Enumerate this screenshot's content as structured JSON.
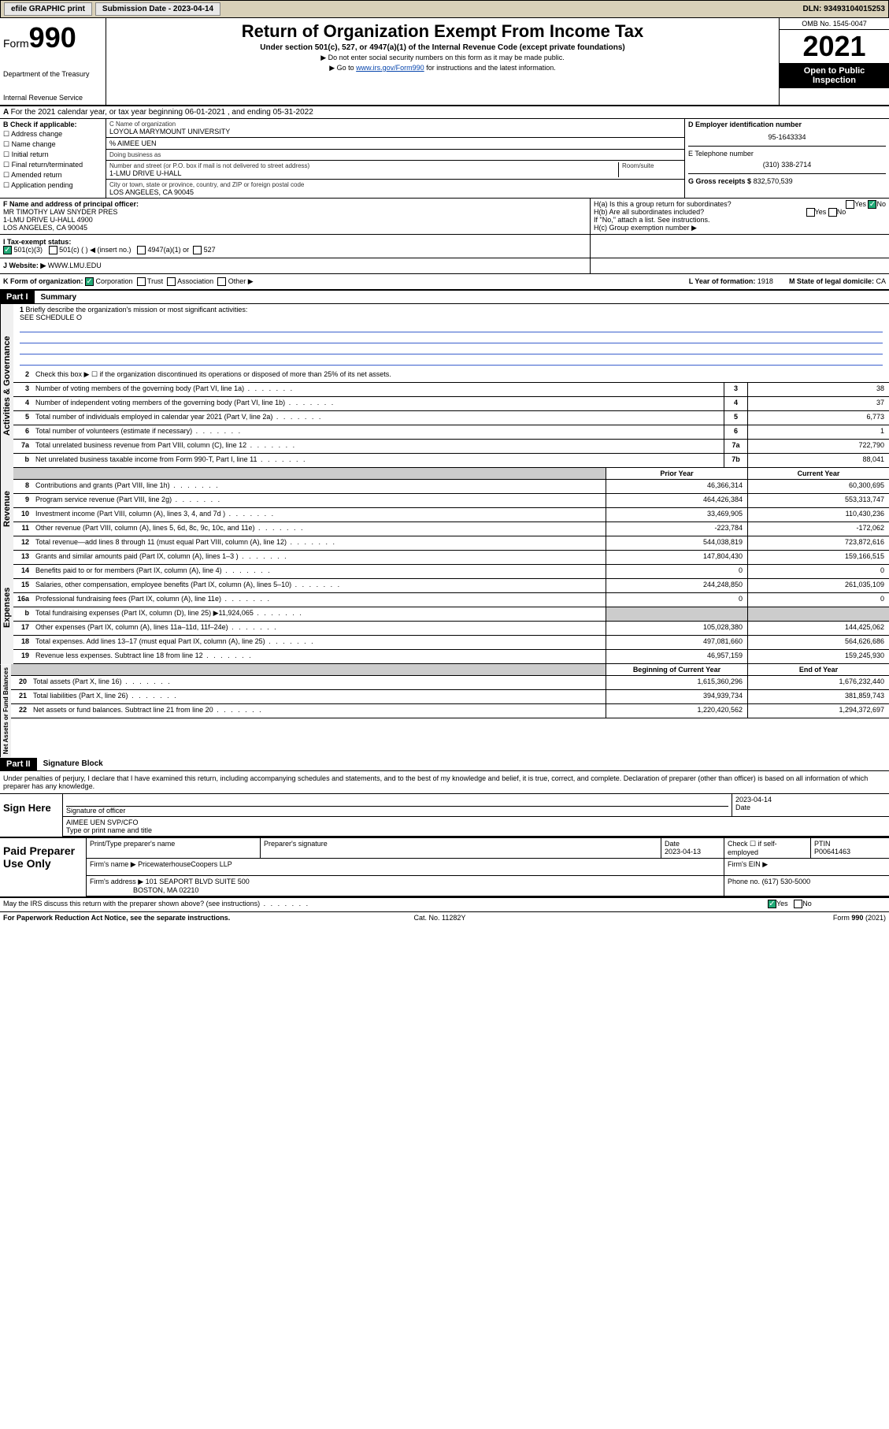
{
  "topbar": {
    "efile": "efile GRAPHIC print",
    "subdate_lbl": "Submission Date - 2023-04-14",
    "dln": "DLN: 93493104015253"
  },
  "header": {
    "form_lbl": "Form",
    "form_num": "990",
    "dept": "Department of the Treasury",
    "irs": "Internal Revenue Service",
    "title": "Return of Organization Exempt From Income Tax",
    "subtitle": "Under section 501(c), 527, or 4947(a)(1) of the Internal Revenue Code (except private foundations)",
    "note1": "▶ Do not enter social security numbers on this form as it may be made public.",
    "note2_pre": "▶ Go to ",
    "note2_link": "www.irs.gov/Form990",
    "note2_post": " for instructions and the latest information.",
    "omb": "OMB No. 1545-0047",
    "year": "2021",
    "inspection": "Open to Public Inspection"
  },
  "line_a": "For the 2021 calendar year, or tax year beginning 06-01-2021   , and ending 05-31-2022",
  "sec_b": {
    "hdr": "B Check if applicable:",
    "opts": [
      "Address change",
      "Name change",
      "Initial return",
      "Final return/terminated",
      "Amended return",
      "Application pending"
    ]
  },
  "sec_c": {
    "name_lbl": "C Name of organization",
    "name": "LOYOLA MARYMOUNT UNIVERSITY",
    "care_lbl": "% AIMEE UEN",
    "dba_lbl": "Doing business as",
    "addr_lbl": "Number and street (or P.O. box if mail is not delivered to street address)",
    "room_lbl": "Room/suite",
    "addr": "1-LMU DRIVE U-HALL",
    "city_lbl": "City or town, state or province, country, and ZIP or foreign postal code",
    "city": "LOS ANGELES, CA  90045"
  },
  "sec_d": {
    "ein_lbl": "D Employer identification number",
    "ein": "95-1643334",
    "tel_lbl": "E Telephone number",
    "tel": "(310) 338-2714",
    "gross_lbl": "G Gross receipts $",
    "gross": "832,570,539"
  },
  "sec_f": {
    "lbl": "F  Name and address of principal officer:",
    "name": "MR TIMOTHY LAW SNYDER PRES",
    "addr1": "1-LMU DRIVE U-HALL 4900",
    "addr2": "LOS ANGELES, CA  90045"
  },
  "sec_h": {
    "ha": "H(a)  Is this a group return for subordinates?",
    "hb": "H(b)  Are all subordinates included?",
    "hb_note": "If \"No,\" attach a list. See instructions.",
    "hc": "H(c)  Group exemption number ▶",
    "yes": "Yes",
    "no": "No"
  },
  "sec_i": {
    "lbl": "I   Tax-exempt status:",
    "o1": "501(c)(3)",
    "o2": "501(c) (   ) ◀ (insert no.)",
    "o3": "4947(a)(1) or",
    "o4": "527"
  },
  "sec_j": {
    "lbl": "J   Website: ▶",
    "val": " WWW.LMU.EDU"
  },
  "sec_k": {
    "lbl": "K Form of organization:",
    "corp": "Corporation",
    "trust": "Trust",
    "assoc": "Association",
    "other": "Other ▶",
    "l_lbl": "L Year of formation:",
    "l_val": "1918",
    "m_lbl": "M State of legal domicile:",
    "m_val": "CA"
  },
  "part1": {
    "hdr": "Part I",
    "title": "Summary",
    "q1": "Briefly describe the organization's mission or most significant activities:",
    "q1v": "SEE SCHEDULE O",
    "q2": "Check this box ▶ ☐  if the organization discontinued its operations or disposed of more than 25% of its net assets.",
    "rows": [
      {
        "n": "3",
        "t": "Number of voting members of the governing body (Part VI, line 1a)",
        "b": "3",
        "v": "38"
      },
      {
        "n": "4",
        "t": "Number of independent voting members of the governing body (Part VI, line 1b)",
        "b": "4",
        "v": "37"
      },
      {
        "n": "5",
        "t": "Total number of individuals employed in calendar year 2021 (Part V, line 2a)",
        "b": "5",
        "v": "6,773"
      },
      {
        "n": "6",
        "t": "Total number of volunteers (estimate if necessary)",
        "b": "6",
        "v": "1"
      },
      {
        "n": "7a",
        "t": "Total unrelated business revenue from Part VIII, column (C), line 12",
        "b": "7a",
        "v": "722,790"
      },
      {
        "n": "b",
        "t": "Net unrelated business taxable income from Form 990-T, Part I, line 11",
        "b": "7b",
        "v": "88,041"
      }
    ],
    "yearhdr": {
      "p": "Prior Year",
      "c": "Current Year"
    },
    "rev_rows": [
      {
        "n": "8",
        "t": "Contributions and grants (Part VIII, line 1h)",
        "p": "46,366,314",
        "c": "60,300,695"
      },
      {
        "n": "9",
        "t": "Program service revenue (Part VIII, line 2g)",
        "p": "464,426,384",
        "c": "553,313,747"
      },
      {
        "n": "10",
        "t": "Investment income (Part VIII, column (A), lines 3, 4, and 7d )",
        "p": "33,469,905",
        "c": "110,430,236"
      },
      {
        "n": "11",
        "t": "Other revenue (Part VIII, column (A), lines 5, 6d, 8c, 9c, 10c, and 11e)",
        "p": "-223,784",
        "c": "-172,062"
      },
      {
        "n": "12",
        "t": "Total revenue—add lines 8 through 11 (must equal Part VIII, column (A), line 12)",
        "p": "544,038,819",
        "c": "723,872,616"
      }
    ],
    "exp_rows": [
      {
        "n": "13",
        "t": "Grants and similar amounts paid (Part IX, column (A), lines 1–3 )",
        "p": "147,804,430",
        "c": "159,166,515"
      },
      {
        "n": "14",
        "t": "Benefits paid to or for members (Part IX, column (A), line 4)",
        "p": "0",
        "c": "0"
      },
      {
        "n": "15",
        "t": "Salaries, other compensation, employee benefits (Part IX, column (A), lines 5–10)",
        "p": "244,248,850",
        "c": "261,035,109"
      },
      {
        "n": "16a",
        "t": "Professional fundraising fees (Part IX, column (A), line 11e)",
        "p": "0",
        "c": "0"
      },
      {
        "n": "b",
        "t": "Total fundraising expenses (Part IX, column (D), line 25) ▶11,924,065",
        "p": "",
        "c": "",
        "grey": true
      },
      {
        "n": "17",
        "t": "Other expenses (Part IX, column (A), lines 11a–11d, 11f–24e)",
        "p": "105,028,380",
        "c": "144,425,062"
      },
      {
        "n": "18",
        "t": "Total expenses. Add lines 13–17 (must equal Part IX, column (A), line 25)",
        "p": "497,081,660",
        "c": "564,626,686"
      },
      {
        "n": "19",
        "t": "Revenue less expenses. Subtract line 18 from line 12",
        "p": "46,957,159",
        "c": "159,245,930"
      }
    ],
    "nethdr": {
      "p": "Beginning of Current Year",
      "c": "End of Year"
    },
    "net_rows": [
      {
        "n": "20",
        "t": "Total assets (Part X, line 16)",
        "p": "1,615,360,296",
        "c": "1,676,232,440"
      },
      {
        "n": "21",
        "t": "Total liabilities (Part X, line 26)",
        "p": "394,939,734",
        "c": "381,859,743"
      },
      {
        "n": "22",
        "t": "Net assets or fund balances. Subtract line 21 from line 20",
        "p": "1,220,420,562",
        "c": "1,294,372,697"
      }
    ],
    "vlabels": {
      "ag": "Activities & Governance",
      "rev": "Revenue",
      "exp": "Expenses",
      "net": "Net Assets or Fund Balances"
    }
  },
  "part2": {
    "hdr": "Part II",
    "title": "Signature Block",
    "intro": "Under penalties of perjury, I declare that I have examined this return, including accompanying schedules and statements, and to the best of my knowledge and belief, it is true, correct, and complete. Declaration of preparer (other than officer) is based on all information of which preparer has any knowledge.",
    "sign_here": "Sign Here",
    "sig_officer_lbl": "Signature of officer",
    "sig_date": "2023-04-14",
    "date_lbl": "Date",
    "officer_name": "AIMEE UEN SVP/CFO",
    "officer_name_lbl": "Type or print name and title",
    "paid_lbl": "Paid Preparer Use Only",
    "prep_name_lbl": "Print/Type preparer's name",
    "prep_sig_lbl": "Preparer's signature",
    "prep_date_lbl": "Date",
    "prep_date": "2023-04-13",
    "prep_check_lbl": "Check ☐ if self-employed",
    "ptin_lbl": "PTIN",
    "ptin": "P00641463",
    "firm_name_lbl": "Firm's name    ▶",
    "firm_name": "PricewaterhouseCoopers LLP",
    "firm_ein_lbl": "Firm's EIN ▶",
    "firm_addr_lbl": "Firm's address ▶",
    "firm_addr1": "101 SEAPORT BLVD SUITE 500",
    "firm_addr2": "BOSTON, MA  02210",
    "firm_phone_lbl": "Phone no.",
    "firm_phone": "(617) 530-5000",
    "discuss": "May the IRS discuss this return with the preparer shown above? (see instructions)",
    "yes": "Yes",
    "no": "No"
  },
  "footer": {
    "l": "For Paperwork Reduction Act Notice, see the separate instructions.",
    "m": "Cat. No. 11282Y",
    "r": "Form 990 (2021)"
  }
}
